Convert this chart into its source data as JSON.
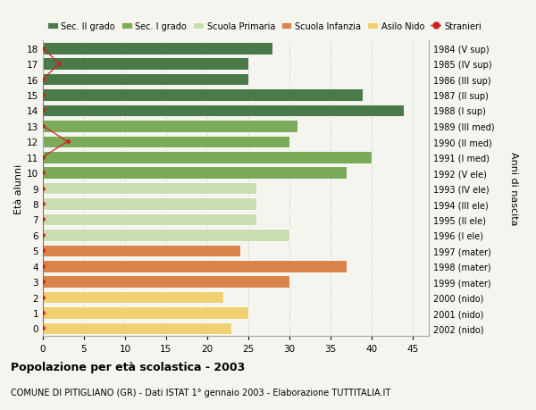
{
  "ages": [
    18,
    17,
    16,
    15,
    14,
    13,
    12,
    11,
    10,
    9,
    8,
    7,
    6,
    5,
    4,
    3,
    2,
    1,
    0
  ],
  "bar_values": [
    28,
    25,
    25,
    39,
    44,
    31,
    30,
    40,
    37,
    26,
    26,
    26,
    30,
    24,
    37,
    30,
    22,
    25,
    23
  ],
  "bar_colors_list": [
    "#4a7a4a",
    "#4a7a4a",
    "#4a7a4a",
    "#4a7a4a",
    "#4a7a4a",
    "#7aaa5a",
    "#7aaa5a",
    "#7aaa5a",
    "#7aaa5a",
    "#c8ddb0",
    "#c8ddb0",
    "#c8ddb0",
    "#c8ddb0",
    "#d8844a",
    "#d8844a",
    "#d8844a",
    "#f0d070",
    "#f0d070",
    "#f0d070"
  ],
  "stranieri_values": [
    0,
    2,
    0,
    0,
    0,
    0,
    3,
    0,
    0,
    0,
    0,
    0,
    0,
    0,
    0,
    0,
    0,
    0,
    0
  ],
  "right_labels": [
    "1984 (V sup)",
    "1985 (IV sup)",
    "1986 (III sup)",
    "1987 (II sup)",
    "1988 (I sup)",
    "1989 (III med)",
    "1990 (II med)",
    "1991 (I med)",
    "1992 (V ele)",
    "1993 (IV ele)",
    "1994 (III ele)",
    "1995 (II ele)",
    "1996 (I ele)",
    "1997 (mater)",
    "1998 (mater)",
    "1999 (mater)",
    "2000 (nido)",
    "2001 (nido)",
    "2002 (nido)"
  ],
  "legend_labels": [
    "Sec. II grado",
    "Sec. I grado",
    "Scuola Primaria",
    "Scuola Infanzia",
    "Asilo Nido",
    "Stranieri"
  ],
  "legend_colors": [
    "#4a7a4a",
    "#7aaa5a",
    "#c8ddb0",
    "#d8844a",
    "#f0d070",
    "#cc2222"
  ],
  "ylabel_left": "Età alunni",
  "ylabel_right": "Anni di nascita",
  "title": "Popolazione per età scolastica - 2003",
  "subtitle": "COMUNE DI PITIGLIANO (GR) - Dati ISTAT 1° gennaio 2003 - Elaborazione TUTTITALIA.IT",
  "xlim": [
    0,
    47
  ],
  "background_color": "#f5f5f0",
  "grid_color": "#cccccc"
}
